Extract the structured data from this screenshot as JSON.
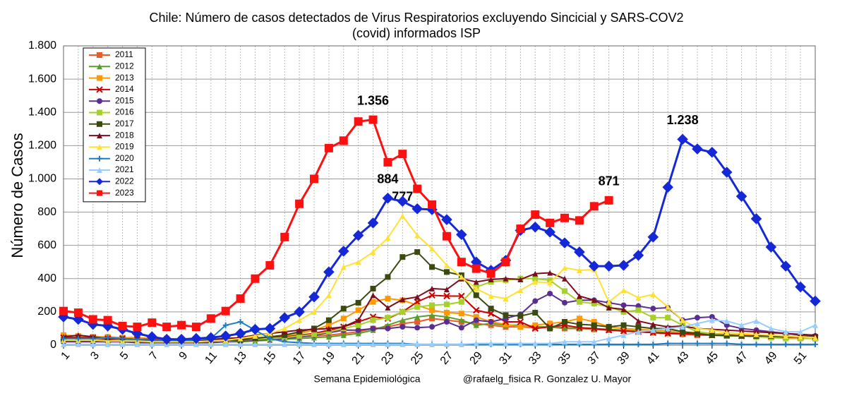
{
  "chart_data": {
    "type": "line",
    "title": "Chile: Número de casos detectados de Virus Respiratorios excluyendo Sincicial y SARS-COV2",
    "subtitle": "(covid) informados ISP",
    "xlabel": "Semana Epidemiológica",
    "credit": "@rafaelg_fisica  R. Gonzalez  U. Mayor",
    "ylabel": "Número de Casos",
    "x": [
      1,
      2,
      3,
      4,
      5,
      6,
      7,
      8,
      9,
      10,
      11,
      12,
      13,
      14,
      15,
      16,
      17,
      18,
      19,
      20,
      21,
      22,
      23,
      24,
      25,
      26,
      27,
      28,
      29,
      30,
      31,
      32,
      33,
      34,
      35,
      36,
      37,
      38,
      39,
      40,
      41,
      42,
      43,
      44,
      45,
      46,
      47,
      48,
      49,
      50,
      51,
      52
    ],
    "xlim": [
      1,
      52
    ],
    "xticks": [
      1,
      3,
      5,
      7,
      9,
      11,
      13,
      15,
      17,
      19,
      21,
      23,
      25,
      27,
      29,
      31,
      33,
      35,
      37,
      39,
      41,
      43,
      45,
      47,
      49,
      51
    ],
    "ylim": [
      0,
      1800
    ],
    "yticks": [
      0,
      200,
      400,
      600,
      800,
      {
        "value": 1000,
        "label": "1.000"
      },
      {
        "value": 1200,
        "label": "1.200"
      },
      {
        "value": 1400,
        "label": "1.400"
      },
      {
        "value": 1600,
        "label": "1.600"
      },
      {
        "value": 1800,
        "label": "1.800"
      }
    ],
    "grid": true,
    "legend": "upper left",
    "series": [
      {
        "name": "2011",
        "color": "#f05a28",
        "marker": "square",
        "values": [
          50,
          45,
          40,
          40,
          35,
          30,
          30,
          25,
          25,
          25,
          25,
          30,
          35,
          40,
          40,
          45,
          50,
          55,
          60,
          70,
          80,
          100,
          110,
          130,
          140,
          160,
          150,
          140,
          130,
          120,
          110,
          110,
          105,
          110,
          100,
          100,
          95,
          90,
          85,
          80,
          75,
          70,
          65,
          60,
          60,
          55,
          55,
          50,
          50,
          45,
          45,
          40
        ]
      },
      {
        "name": "2012",
        "color": "#5a9e2a",
        "marker": "triangle",
        "values": [
          25,
          25,
          25,
          25,
          20,
          20,
          20,
          20,
          20,
          20,
          20,
          20,
          20,
          25,
          30,
          35,
          40,
          45,
          50,
          60,
          70,
          90,
          120,
          150,
          170,
          180,
          170,
          150,
          120,
          130,
          120,
          120,
          110,
          110,
          105,
          100,
          100,
          95,
          90,
          85,
          80,
          75,
          70,
          65,
          60,
          55,
          55,
          50,
          50,
          45,
          45,
          40
        ]
      },
      {
        "name": "2013",
        "color": "#ff9900",
        "marker": "square",
        "values": [
          60,
          55,
          50,
          50,
          45,
          45,
          40,
          40,
          35,
          35,
          35,
          40,
          40,
          45,
          50,
          60,
          70,
          90,
          120,
          160,
          210,
          260,
          280,
          270,
          240,
          210,
          195,
          190,
          170,
          140,
          125,
          110,
          120,
          130,
          140,
          160,
          140,
          110,
          100,
          95,
          90,
          85,
          80,
          75,
          70,
          65,
          60,
          60,
          55,
          55,
          50,
          50
        ]
      },
      {
        "name": "2014",
        "color": "#cc0000",
        "marker": "x",
        "values": [
          45,
          45,
          45,
          40,
          40,
          35,
          35,
          30,
          30,
          30,
          30,
          35,
          35,
          40,
          45,
          50,
          60,
          70,
          90,
          110,
          140,
          170,
          160,
          200,
          260,
          300,
          295,
          295,
          210,
          190,
          140,
          140,
          100,
          110,
          120,
          105,
          100,
          90,
          85,
          80,
          75,
          70,
          70,
          65,
          60,
          60,
          55,
          55,
          50,
          50,
          45,
          45
        ]
      },
      {
        "name": "2015",
        "color": "#5c2d91",
        "marker": "circle",
        "values": [
          20,
          20,
          20,
          20,
          20,
          15,
          15,
          15,
          15,
          15,
          15,
          20,
          25,
          30,
          35,
          40,
          50,
          60,
          75,
          90,
          90,
          100,
          100,
          110,
          105,
          110,
          140,
          105,
          150,
          140,
          160,
          185,
          265,
          310,
          255,
          270,
          270,
          255,
          240,
          235,
          220,
          225,
          150,
          165,
          170,
          120,
          100,
          90,
          80,
          70,
          60,
          55
        ]
      },
      {
        "name": "2016",
        "color": "#a6d12b",
        "marker": "square",
        "values": [
          30,
          30,
          30,
          30,
          25,
          25,
          25,
          25,
          20,
          20,
          25,
          25,
          30,
          35,
          40,
          45,
          55,
          65,
          80,
          100,
          120,
          150,
          165,
          200,
          230,
          240,
          245,
          260,
          350,
          380,
          390,
          400,
          400,
          390,
          325,
          260,
          250,
          230,
          200,
          210,
          165,
          165,
          120,
          80,
          70,
          60,
          55,
          50,
          45,
          40,
          40,
          40
        ]
      },
      {
        "name": "2017",
        "color": "#3b4a0f",
        "marker": "square",
        "values": [
          30,
          30,
          30,
          30,
          25,
          25,
          25,
          25,
          25,
          25,
          25,
          30,
          30,
          40,
          50,
          60,
          80,
          100,
          150,
          220,
          255,
          340,
          410,
          530,
          560,
          470,
          440,
          420,
          300,
          220,
          180,
          175,
          195,
          100,
          140,
          125,
          120,
          110,
          120,
          110,
          100,
          100,
          80,
          70,
          60,
          60,
          55,
          55,
          55,
          55,
          50,
          50
        ]
      },
      {
        "name": "2018",
        "color": "#7b0e1e",
        "marker": "triangle",
        "values": [
          50,
          60,
          50,
          40,
          40,
          35,
          30,
          30,
          30,
          30,
          35,
          40,
          45,
          60,
          70,
          80,
          90,
          95,
          100,
          110,
          150,
          300,
          225,
          275,
          290,
          340,
          335,
          400,
          380,
          395,
          400,
          395,
          430,
          435,
          400,
          295,
          270,
          225,
          215,
          145,
          125,
          110,
          115,
          100,
          95,
          90,
          85,
          80,
          75,
          70,
          65,
          60
        ]
      },
      {
        "name": "2019",
        "color": "#ffe135",
        "marker": "triangle",
        "values": [
          30,
          30,
          30,
          25,
          25,
          25,
          20,
          20,
          20,
          20,
          25,
          30,
          40,
          55,
          70,
          100,
          150,
          200,
          300,
          470,
          500,
          560,
          645,
          777,
          660,
          580,
          480,
          410,
          340,
          295,
          280,
          330,
          380,
          375,
          465,
          450,
          455,
          260,
          330,
          285,
          305,
          230,
          150,
          100,
          90,
          75,
          70,
          65,
          60,
          55,
          50,
          45
        ],
        "value_labels": [
          null,
          null,
          null,
          null,
          null,
          null,
          null,
          null,
          null,
          null,
          null,
          null,
          null,
          null,
          null,
          null,
          null,
          null,
          null,
          null,
          null,
          null,
          null,
          "777",
          null,
          null,
          null,
          null,
          null,
          null,
          null,
          null,
          null,
          null,
          null,
          null,
          null,
          null,
          null,
          null,
          null,
          null,
          null,
          null,
          null,
          null,
          null,
          null,
          null,
          null,
          null,
          null
        ]
      },
      {
        "name": "2020",
        "color": "#1b7ec2",
        "marker": "plus",
        "values": [
          40,
          40,
          40,
          45,
          40,
          35,
          30,
          30,
          30,
          30,
          40,
          120,
          140,
          90,
          40,
          20,
          15,
          10,
          10,
          10,
          10,
          10,
          10,
          10,
          5,
          5,
          5,
          5,
          5,
          5,
          5,
          5,
          5,
          5,
          5,
          5,
          5,
          5,
          5,
          5,
          5,
          10,
          10,
          10,
          10,
          10,
          5,
          5,
          5,
          5,
          5,
          5
        ]
      },
      {
        "name": "2021",
        "color": "#99ccff",
        "marker": "triangle",
        "values": [
          5,
          5,
          5,
          5,
          5,
          5,
          5,
          5,
          5,
          5,
          5,
          5,
          5,
          5,
          5,
          5,
          5,
          5,
          5,
          5,
          5,
          5,
          5,
          5,
          5,
          5,
          5,
          5,
          10,
          10,
          10,
          10,
          10,
          10,
          20,
          20,
          20,
          40,
          60,
          80,
          90,
          100,
          110,
          130,
          150,
          145,
          120,
          145,
          100,
          80,
          80,
          120
        ]
      },
      {
        "name": "2022",
        "color": "#1428d8",
        "marker": "diamond",
        "values": [
          170,
          155,
          125,
          115,
          95,
          70,
          50,
          35,
          35,
          40,
          45,
          55,
          70,
          95,
          100,
          165,
          200,
          290,
          440,
          565,
          660,
          735,
          884,
          865,
          820,
          815,
          755,
          665,
          500,
          450,
          510,
          690,
          710,
          680,
          615,
          560,
          475,
          475,
          480,
          540,
          650,
          950,
          1238,
          1180,
          1160,
          1040,
          895,
          760,
          590,
          475,
          350,
          265
        ],
        "value_labels": [
          null,
          null,
          null,
          null,
          null,
          null,
          null,
          null,
          null,
          null,
          null,
          null,
          null,
          null,
          null,
          null,
          null,
          null,
          null,
          null,
          null,
          null,
          "884",
          null,
          null,
          null,
          null,
          null,
          null,
          null,
          null,
          null,
          null,
          null,
          null,
          null,
          null,
          null,
          null,
          null,
          null,
          null,
          "1.238",
          null,
          null,
          null,
          null,
          null,
          null,
          null,
          null,
          null
        ]
      },
      {
        "name": "2023",
        "color": "#ff1010",
        "marker": "square",
        "values": [
          205,
          195,
          155,
          150,
          115,
          110,
          135,
          110,
          120,
          110,
          160,
          205,
          280,
          400,
          480,
          650,
          850,
          1000,
          1185,
          1230,
          1345,
          1356,
          1100,
          1150,
          940,
          845,
          655,
          500,
          460,
          430,
          500,
          700,
          785,
          735,
          765,
          750,
          835,
          871,
          null,
          null,
          null,
          null,
          null,
          null,
          null,
          null,
          null,
          null,
          null,
          null,
          null,
          null
        ],
        "value_labels": [
          null,
          null,
          null,
          null,
          null,
          null,
          null,
          null,
          null,
          null,
          null,
          null,
          null,
          null,
          null,
          null,
          null,
          null,
          null,
          null,
          null,
          "1.356",
          null,
          null,
          null,
          null,
          null,
          null,
          null,
          null,
          null,
          null,
          null,
          null,
          null,
          null,
          null,
          "871",
          null,
          null,
          null,
          null,
          null,
          null,
          null,
          null,
          null,
          null,
          null,
          null,
          null,
          null
        ]
      }
    ]
  }
}
